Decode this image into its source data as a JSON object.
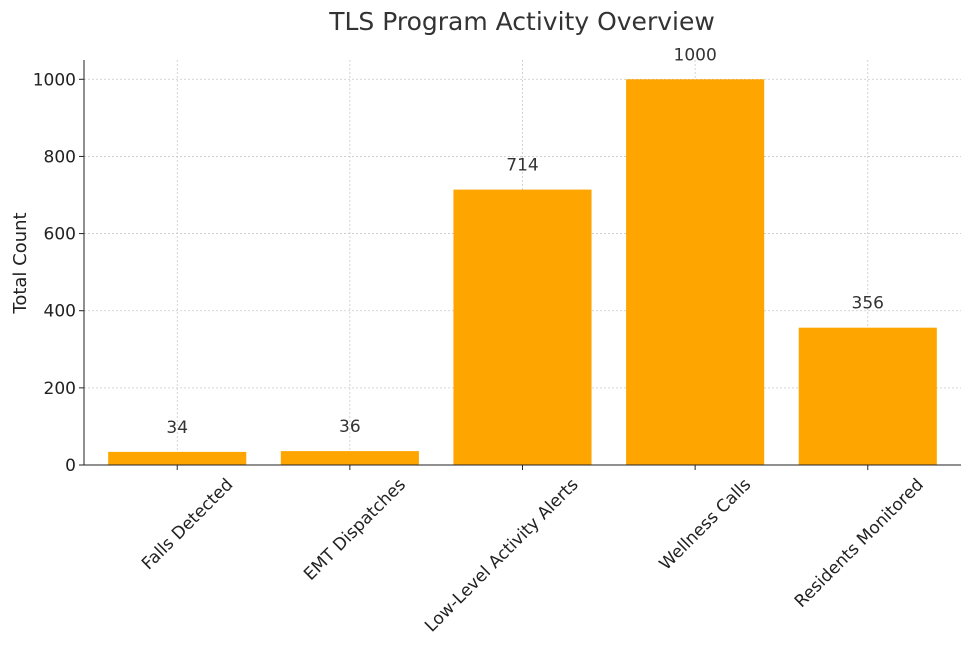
{
  "chart_data": {
    "type": "bar",
    "title": "TLS Program Activity Overview",
    "xlabel": "",
    "ylabel": "Total Count",
    "categories": [
      "Falls Detected",
      "EMT Dispatches",
      "Low-Level Activity Alerts",
      "Wellness Calls",
      "Residents Monitored"
    ],
    "values": [
      34,
      36,
      714,
      1000,
      356
    ],
    "data_labels": [
      "34",
      "36",
      "714",
      "1000",
      "356"
    ],
    "yticks": [
      0,
      200,
      400,
      600,
      800,
      1000
    ],
    "ylim": [
      0,
      1050
    ],
    "grid": true,
    "bar_color": "#FFA500",
    "text_color": "#333333"
  }
}
